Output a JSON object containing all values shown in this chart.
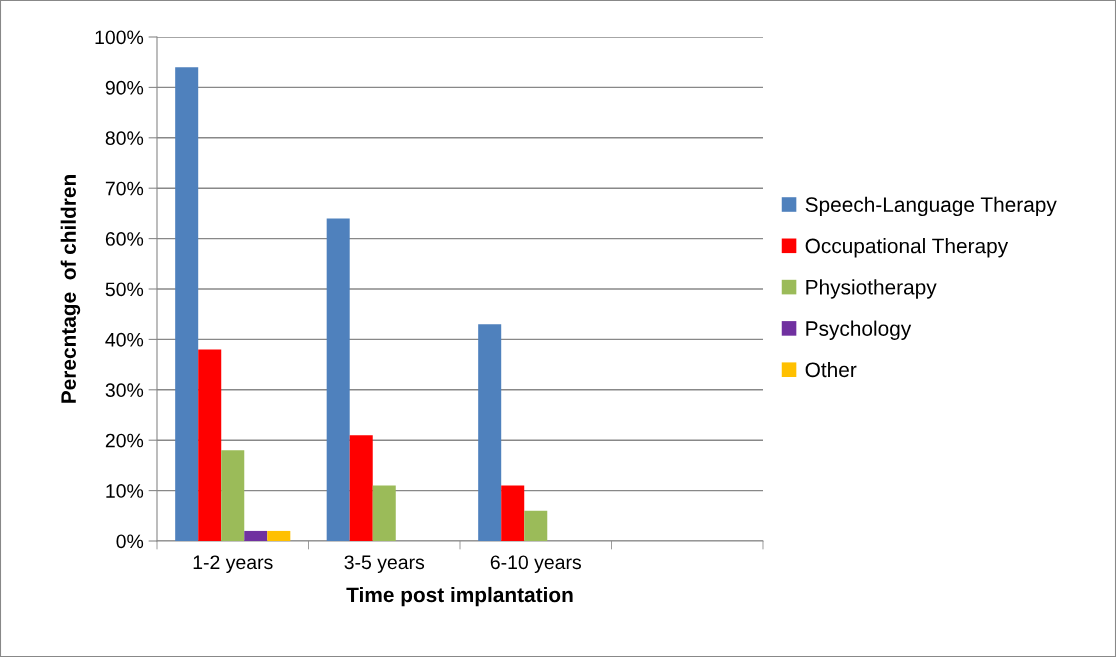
{
  "chart_data": {
    "type": "bar",
    "xlabel": "Time post implantation",
    "ylabel": "Perecntage  of children",
    "categories": [
      "1-2 years",
      "3-5 years",
      "6-10 years",
      null
    ],
    "series": [
      {
        "name": "Speech-Language Therapy",
        "color": "#4f81bd",
        "values": [
          94,
          64,
          43,
          null
        ]
      },
      {
        "name": "Occupational Therapy",
        "color": "#ff0000",
        "values": [
          38,
          21,
          11,
          null
        ]
      },
      {
        "name": "Physiotherapy",
        "color": "#9bbb59",
        "values": [
          18,
          11,
          6,
          null
        ]
      },
      {
        "name": "Psychology",
        "color": "#7030a0",
        "values": [
          2,
          0,
          0,
          null
        ]
      },
      {
        "name": "Other",
        "color": "#ffc000",
        "values": [
          2,
          0,
          0,
          null
        ]
      }
    ],
    "ylim": [
      0,
      100
    ],
    "yticks": [
      {
        "value": 0,
        "label": "0%"
      },
      {
        "value": 10,
        "label": "10%"
      },
      {
        "value": 20,
        "label": "20%"
      },
      {
        "value": 30,
        "label": "30%"
      },
      {
        "value": 40,
        "label": "40%"
      },
      {
        "value": 50,
        "label": "50%"
      },
      {
        "value": 60,
        "label": "60%"
      },
      {
        "value": 70,
        "label": "70%"
      },
      {
        "value": 80,
        "label": "80%"
      },
      {
        "value": 90,
        "label": "90%"
      },
      {
        "value": 100,
        "label": "100%"
      }
    ],
    "grid": "y",
    "legend": "right"
  }
}
